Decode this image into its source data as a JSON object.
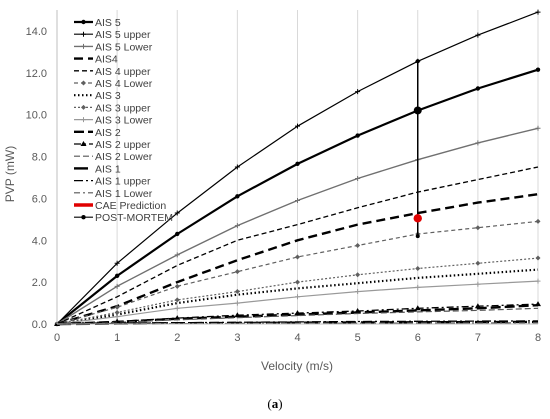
{
  "caption": {
    "open": "(",
    "label": "a",
    "close": ")"
  },
  "chart_data": {
    "type": "line",
    "xlabel": "Velocity (m/s)",
    "ylabel": "PVP (mW)",
    "xlim": [
      0,
      8
    ],
    "ylim": [
      0,
      15
    ],
    "x_ticks": [
      "0",
      "1",
      "2",
      "3",
      "4",
      "5",
      "6",
      "7",
      "8"
    ],
    "y_ticks": [
      "0.0",
      "2.0",
      "4.0",
      "6.0",
      "8.0",
      "10.0",
      "12.0",
      "14.0"
    ],
    "grid": "vertical",
    "legend_position": "top-left",
    "x": [
      0,
      1,
      2,
      3,
      4,
      5,
      6,
      7,
      8
    ],
    "series": [
      {
        "name": "AIS 5",
        "values": [
          0,
          2.3,
          4.3,
          6.1,
          7.65,
          9.0,
          10.2,
          11.25,
          12.15
        ],
        "color": "#000000",
        "width": 2.2,
        "dash": "",
        "marker": "circle"
      },
      {
        "name": "AIS 5 upper",
        "values": [
          0,
          2.9,
          5.3,
          7.5,
          9.45,
          11.1,
          12.55,
          13.8,
          14.9
        ],
        "color": "#000000",
        "width": 1.2,
        "dash": "",
        "marker": "plus"
      },
      {
        "name": "AIS 5 Lower",
        "values": [
          0,
          1.8,
          3.3,
          4.7,
          5.9,
          6.95,
          7.85,
          8.65,
          9.35
        ],
        "color": "#707070",
        "width": 1.4,
        "dash": "",
        "marker": "plus"
      },
      {
        "name": "AIS4",
        "values": [
          0,
          0.85,
          2.0,
          3.05,
          4.0,
          4.75,
          5.3,
          5.8,
          6.2
        ],
        "color": "#000000",
        "width": 2.4,
        "dash": "9,5",
        "marker": "none"
      },
      {
        "name": "AIS 4 upper",
        "values": [
          0,
          1.3,
          2.8,
          4.0,
          4.75,
          5.55,
          6.3,
          6.9,
          7.5
        ],
        "color": "#000000",
        "width": 1.3,
        "dash": "5,3",
        "marker": "none"
      },
      {
        "name": "AIS 4 Lower",
        "values": [
          0,
          0.8,
          1.8,
          2.5,
          3.2,
          3.75,
          4.3,
          4.6,
          4.9
        ],
        "color": "#606060",
        "width": 1.2,
        "dash": "4,3",
        "marker": "diamond"
      },
      {
        "name": "AIS 3",
        "values": [
          0,
          0.45,
          1.0,
          1.4,
          1.7,
          1.95,
          2.2,
          2.4,
          2.6
        ],
        "color": "#000000",
        "width": 2.2,
        "dash": "1.5,2.5",
        "marker": "none"
      },
      {
        "name": "AIS 3 upper",
        "values": [
          0,
          0.55,
          1.15,
          1.55,
          2.0,
          2.35,
          2.65,
          2.9,
          3.15
        ],
        "color": "#606060",
        "width": 1.2,
        "dash": "2,2",
        "marker": "diamond"
      },
      {
        "name": "AIS 3 Lower",
        "values": [
          0,
          0.35,
          0.75,
          1.0,
          1.3,
          1.55,
          1.75,
          1.9,
          2.05
        ],
        "color": "#999999",
        "width": 1.2,
        "dash": "",
        "marker": "plus"
      },
      {
        "name": "AIS 2",
        "values": [
          0,
          0.1,
          0.25,
          0.35,
          0.45,
          0.55,
          0.65,
          0.75,
          0.9
        ],
        "color": "#000000",
        "width": 2.4,
        "dash": "10,4",
        "marker": "none"
      },
      {
        "name": "AIS 2 upper",
        "values": [
          0,
          0.12,
          0.28,
          0.42,
          0.52,
          0.62,
          0.75,
          0.85,
          0.95
        ],
        "color": "#000000",
        "width": 1.3,
        "dash": "7,3,2,3",
        "marker": "triangle"
      },
      {
        "name": "AIS 2 Lower",
        "values": [
          0,
          0.08,
          0.2,
          0.3,
          0.4,
          0.5,
          0.58,
          0.65,
          0.75
        ],
        "color": "#555555",
        "width": 1.2,
        "dash": "6,3",
        "marker": "none"
      },
      {
        "name": "AIS 1",
        "values": [
          0,
          0.02,
          0.04,
          0.05,
          0.06,
          0.07,
          0.08,
          0.09,
          0.1
        ],
        "color": "#000000",
        "width": 2.4,
        "dash": "14,5",
        "marker": "none"
      },
      {
        "name": "AIS 1 upper",
        "values": [
          0,
          0.03,
          0.06,
          0.08,
          0.1,
          0.12,
          0.13,
          0.14,
          0.15
        ],
        "color": "#000000",
        "width": 1.3,
        "dash": "9,3,2,3",
        "marker": "none"
      },
      {
        "name": "AIS 1 Lower",
        "values": [
          0,
          0.01,
          0.02,
          0.03,
          0.04,
          0.04,
          0.05,
          0.05,
          0.06
        ],
        "color": "#555555",
        "width": 1.2,
        "dash": "6,3,2,3",
        "marker": "none"
      }
    ],
    "cae_prediction": {
      "name": "CAE Prediction",
      "x": 6,
      "y": 5.05,
      "color": "#e00000"
    },
    "post_mortem": {
      "name": "POST-MORTEM",
      "x": [
        6,
        6,
        6
      ],
      "y": [
        12.55,
        10.2,
        4.2
      ],
      "color": "#000000"
    }
  }
}
